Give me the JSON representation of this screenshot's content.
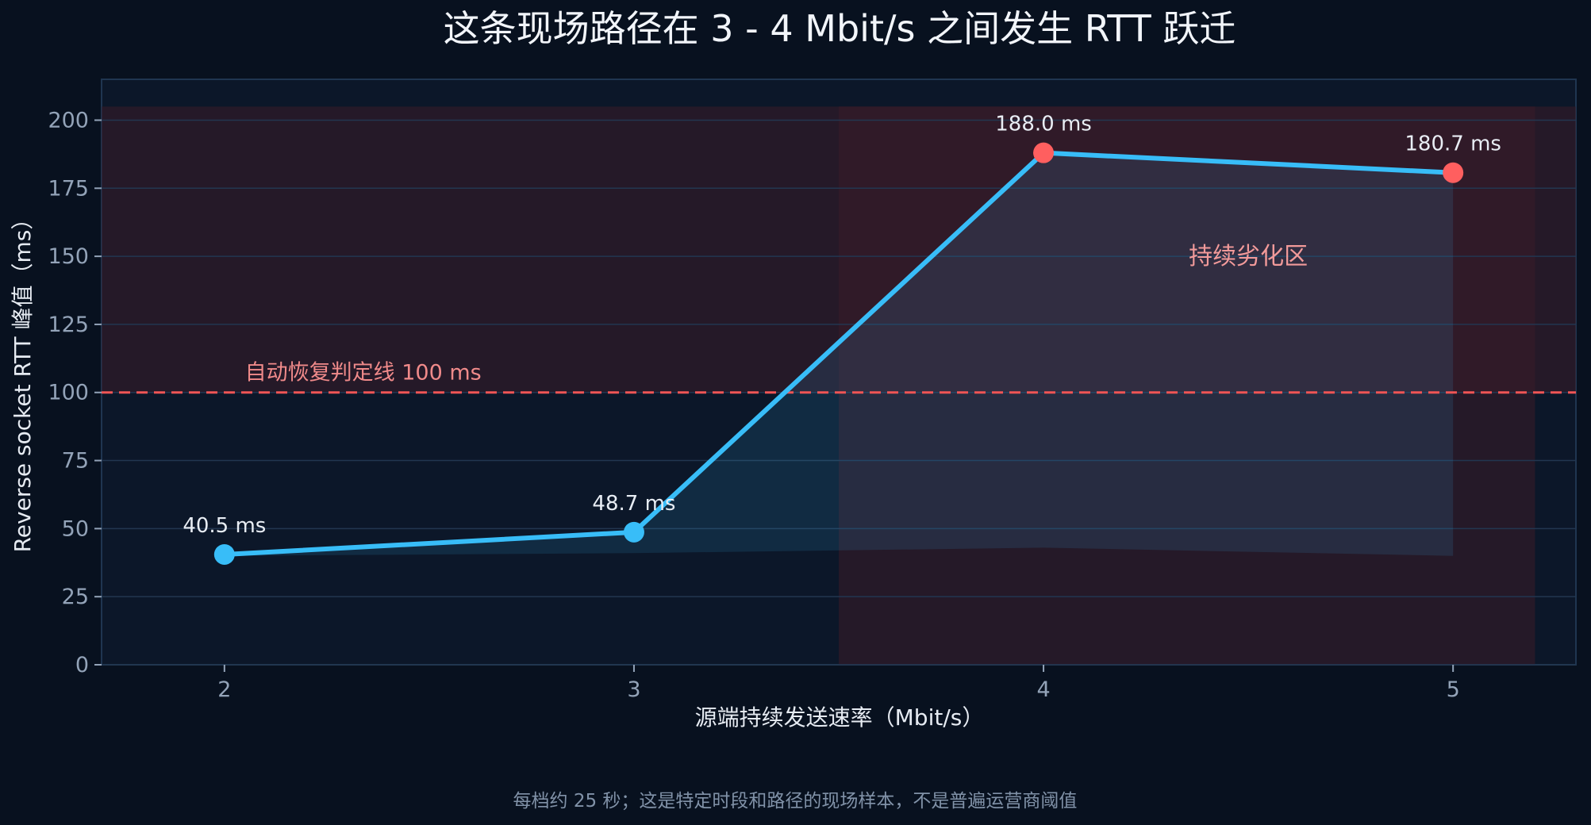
{
  "chart_data": {
    "type": "line",
    "title": "这条现场路径在 3 - 4 Mbit/s 之间发生 RTT 跃迁",
    "xlabel": "源端持续发送速率（Mbit/s）",
    "ylabel": "Reverse socket RTT 峰值（ms）",
    "caption": "每档约 25 秒；这是特定时段和路径的现场样本，不是普遍运营商阈值",
    "x": [
      2,
      3,
      4,
      5
    ],
    "series": [
      {
        "values": [
          40.5,
          48.7,
          188.0,
          180.7
        ],
        "labels": [
          "40.5 ms",
          "48.7 ms",
          "188.0 ms",
          "180.7 ms"
        ],
        "point_colors": [
          "#38bdf8",
          "#38bdf8",
          "#ff5f5f",
          "#ff5f5f"
        ]
      }
    ],
    "baseline": {
      "values": [
        40,
        41,
        43,
        40
      ]
    },
    "xticks": [
      "2",
      "3",
      "4",
      "5"
    ],
    "yticks": [
      "0",
      "25",
      "50",
      "75",
      "100",
      "125",
      "150",
      "175",
      "200"
    ],
    "xlim": [
      1.7,
      5.3
    ],
    "ylim": [
      0,
      215
    ],
    "threshold": {
      "value": 100,
      "label": "自动恢复判定线 100 ms"
    },
    "elevated_band": {
      "y_from": 100,
      "y_to": 205
    },
    "degraded_zone": {
      "x_from": 3.5,
      "x_to": 5.2,
      "label": "持续劣化区"
    },
    "grid": true,
    "legend": "none",
    "colors": {
      "background": "#08111f",
      "plot_background": "#0c1729",
      "line": "#38bdf8",
      "high_point": "#ff5f5f",
      "threshold": "#ef5555",
      "zone": "#3a1c28"
    }
  }
}
